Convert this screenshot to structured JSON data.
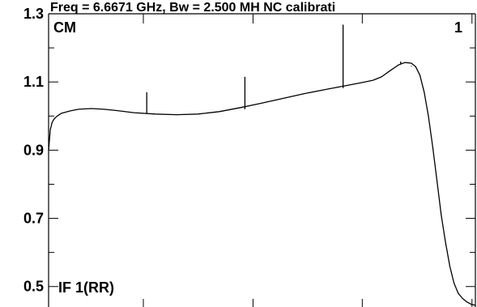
{
  "chart_data": {
    "type": "line",
    "title": "Freq = 6.6671 GHz, Bw = 2.500 MH  NC calibrati",
    "corner_left": "CM",
    "corner_right": "1",
    "bottom_label": "IF 1(RR)",
    "xlabel": "",
    "ylabel": "",
    "xlim": [
      0,
      1
    ],
    "ylim": [
      0.44,
      1.3
    ],
    "yticks": [
      0.5,
      0.7,
      0.9,
      1.1,
      1.3
    ],
    "ytick_labels": [
      "0.5",
      "0.7",
      "0.9",
      "1.1",
      "1.3"
    ],
    "xticks_major": [
      0.222,
      0.479,
      0.735,
      0.992
    ],
    "grid": false,
    "legend": "none",
    "line_color": "#000000",
    "series": [
      {
        "x": [
          0.0,
          0.004,
          0.008,
          0.012,
          0.02,
          0.03,
          0.05,
          0.07,
          0.1,
          0.13,
          0.16,
          0.2,
          0.25,
          0.3,
          0.35,
          0.4,
          0.45,
          0.5,
          0.55,
          0.6,
          0.65,
          0.7,
          0.73,
          0.76,
          0.78,
          0.8,
          0.82,
          0.835,
          0.85,
          0.86,
          0.87,
          0.88,
          0.89,
          0.9,
          0.91,
          0.92,
          0.93,
          0.94,
          0.95,
          0.96,
          0.97,
          0.98,
          0.99,
          1.0
        ],
        "y": [
          0.9,
          0.96,
          0.98,
          0.99,
          1.0,
          1.008,
          1.015,
          1.02,
          1.022,
          1.02,
          1.016,
          1.01,
          1.006,
          1.004,
          1.006,
          1.013,
          1.025,
          1.038,
          1.052,
          1.066,
          1.078,
          1.09,
          1.097,
          1.105,
          1.115,
          1.133,
          1.15,
          1.157,
          1.155,
          1.145,
          1.12,
          1.07,
          1.0,
          0.91,
          0.81,
          0.71,
          0.63,
          0.56,
          0.51,
          0.48,
          0.465,
          0.455,
          0.448,
          0.445
        ]
      }
    ],
    "spikes": [
      {
        "x": 0.23,
        "y_base": 1.008,
        "y_top": 1.07
      },
      {
        "x": 0.46,
        "y_base": 1.02,
        "y_top": 1.115
      },
      {
        "x": 0.69,
        "y_base": 1.082,
        "y_top": 1.268
      },
      {
        "x": 0.825,
        "y_base": 1.153,
        "y_top": 1.16
      },
      {
        "x": 0.85,
        "y_base": 1.145,
        "y_top": 1.147
      }
    ]
  }
}
